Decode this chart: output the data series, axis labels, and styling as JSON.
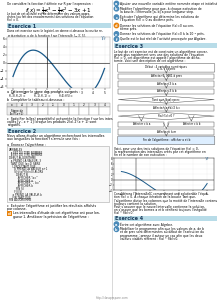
{
  "page_bg": "#ffffff",
  "title_text": "On considère la fonction f définie sur R par l'expression :",
  "formula": "f(x) = \\frac{1}{4}x^3 - \\frac{3}{4}x^2 - 3x + 1",
  "subtitle_lines": [
    "Le but de cet activité est de déterminer des valeurs appro-",
    "chées (ou fait des encadrements) des solutions de l'équation",
    "f(x) = 0."
  ],
  "ex1_title": "Exercice 1",
  "ex2_title": "Exercice 2",
  "ex3_title": "Exercice 3",
  "ex4_title": "Exercice 4",
  "graph1_xlim": [
    -3.5,
    5.5
  ],
  "graph1_ylim": [
    -6.5,
    6.5
  ],
  "graph1_color": "#1a5a8a",
  "graph2_color": "#1a5a8a",
  "algo_lines": [
    "VARIABLES",
    "  a EST DU TYPE NOMBRE",
    "  b EST DU TYPE NOMBRE",
    "DEBUT ALGORITHME",
    "  a PREND LA VALEUR -3",
    "  TANT QUE (a<1) FAIRE",
    "    LORQU'TANT QUE",
    "      b PREND LA VALEUR a+1",
    "      SI (f(a)*f(b)<0) ALORS",
    "        DEBUT SI",
    "          AFFICHER \"a=\"",
    "          AFFICHER a",
    "          AFFICHER \" ; b=\"",
    "          AFFICHER b",
    "        FIN SI",
    "      FIN SI",
    "    a PREND LA VALEUR b",
    "    FIN TANT QUE",
    "FIN ALGORITHME"
  ],
  "table_headers": [
    "x",
    "-4",
    "-3",
    "-2",
    "-1",
    "0",
    "1",
    "2",
    "3",
    "4"
  ],
  "footer_text": "http://classprepare.com",
  "colors": {
    "ex_header_bg": "#b8dce8",
    "ex_header_text": "#1a3a5a",
    "orange_badge": "#e8820a",
    "blue_badge": "#4a8ab8",
    "curve_color": "#1a5a8a",
    "algo_bg": "#f5f5f5"
  },
  "right_items_top": [
    [
      "blue",
      "a",
      "Ajouter une nouvelle variable entière nommée etape et initialisée avec la valeur 0.0."
    ],
    [
      "blue",
      "b",
      "Modifier l'algorithme pour que, à chaque exécution de\nla boucle, l'intervalle [a; b] a pour longueur step."
    ],
    [
      "blue",
      "c",
      "Exécuter l'algorithme qui détermine les solutions de\nl'Equation f(x) = 0 au dixième près."
    ],
    [
      "orange",
      "d",
      "Donner les solutions de l'équation f(x)=0 au cen-\ntième près."
    ],
    [
      "blue",
      "e",
      "Donner les solutions de l'équation f(x)=0 à la 10⁻³ près."
    ],
    [
      "blue",
      "f",
      "Quelle est le but réel de l'activité provoquée par Algebre."
    ]
  ],
  "ex3_intro": [
    "Le but de cet exercice est de construire un algorithme conver-",
    "geant plus rapidement vers une des solutions de l'équation",
    "f(x) = 0. cet algorithme est appelé l'algorithme de dicho-",
    "tomie. Voici une description de cet algorithme :"
  ],
  "flowchart_nodes": [
    {
      "type": "rounded",
      "text": "Début : 4 variables numériques\na, b, c et prec"
    },
    {
      "type": "rect",
      "text": "Affecter 0, 0001 à prec"
    },
    {
      "type": "rect",
      "text": "Affecter -3 à a"
    },
    {
      "type": "rect",
      "text": "Affecter -3 à b"
    },
    {
      "type": "diamond",
      "text": "Tant que |b-a|>prec"
    },
    {
      "type": "rect",
      "text": "Affecter (a+b)/2 à c"
    },
    {
      "type": "diamond",
      "text": "f(a)·f(c)>0 ?"
    },
    {
      "type": "rect2",
      "text": "Affecter c à a\n(gauche)"
    },
    {
      "type": "rect2",
      "text": "Affecter c à b\n(droite)"
    },
    {
      "type": "rect",
      "text": "Affecter c à m"
    },
    {
      "type": "rounded",
      "text": "Fin de l'algorithme :\nafficher a et b"
    }
  ],
  "ex4_text": [
    "Voici, pour une des trois solutions de l'équation f(x) = 0,",
    "la représentation des intervalles créés par cet algorithme en",
    "fin et le nombre de son exécution :"
  ],
  "ex4_table_left": [
    [
      "i",
      "a_i",
      "b_i"
    ],
    [
      "0",
      "-3",
      "-2"
    ],
    [
      "1",
      "-3",
      "-2.5"
    ],
    [
      "2",
      "-2.75",
      "-2.5"
    ],
    [
      "3",
      "-2.75",
      "-2.625"
    ]
  ],
  "ex4_table_right": [
    [
      "i",
      "a_i",
      "b_i"
    ],
    [
      "4",
      "-2.6875",
      "-2.625"
    ],
    [
      "5",
      "-2.6875",
      "-2.65625"
    ],
    [
      "6",
      "-2.671875",
      "-2.65625"
    ],
    [
      "...",
      "...",
      "..."
    ]
  ],
  "ex4_bottom_items": [
    [
      "blue",
      "a",
      "Écrire cet algorithme avec Algebre."
    ],
    [
      "blue",
      "b",
      "Modéliser le programme afin que les valeurs de a, de b\net de prec sont déterminées au début de l'exécution du\nprogramme ; prenez il autour un cas afin que les deux\nvaleurs viables réfèrent : f(a) * f(b)<0."
    ]
  ]
}
